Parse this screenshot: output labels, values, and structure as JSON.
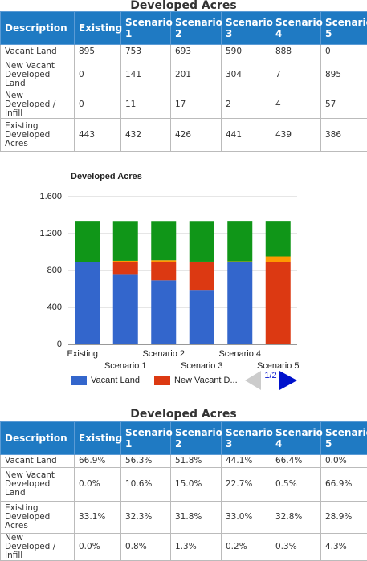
{
  "table1": {
    "title": "Developed Acres",
    "columns": [
      "Description",
      "Existing",
      "Scenario 1",
      "Scenario 2",
      "Scenario 3",
      "Scenario 4",
      "Scenario 5"
    ],
    "rows": [
      [
        "Vacant Land",
        895,
        753,
        693,
        590,
        888,
        0
      ],
      [
        "New Vacant Developed Land",
        0,
        141,
        201,
        304,
        7,
        895
      ],
      [
        "New Developed / Infill",
        0,
        11,
        17,
        2,
        4,
        57
      ],
      [
        "Existing Developed Acres",
        443,
        432,
        426,
        441,
        439,
        386
      ]
    ]
  },
  "chart_data": {
    "type": "stacked_bar",
    "title": "Developed Acres",
    "categories": [
      "Existing",
      "Scenario 1",
      "Scenario 2",
      "Scenario 3",
      "Scenario 4",
      "Scenario 5"
    ],
    "series": [
      {
        "name": "Vacant Land",
        "color": "#3366cc",
        "values": [
          895,
          753,
          693,
          590,
          888,
          0
        ]
      },
      {
        "name": "New Vacant Developed Land",
        "color": "#dc3912",
        "values": [
          0,
          141,
          201,
          304,
          7,
          895
        ]
      },
      {
        "name": "New Developed / Infill",
        "color": "#ff9900",
        "values": [
          0,
          11,
          17,
          2,
          4,
          57
        ]
      },
      {
        "name": "Existing Developed Acres",
        "color": "#109618",
        "values": [
          443,
          432,
          426,
          441,
          439,
          386
        ]
      }
    ],
    "ylim": [
      0,
      1600
    ],
    "yticks": [
      0,
      400,
      800,
      {
        "value": 1200,
        "label": "1.200"
      },
      {
        "value": 1600,
        "label": "1.600"
      }
    ],
    "grid": true,
    "legend": {
      "entries": [
        "Vacant Land",
        "New Vacant D..."
      ],
      "page": "1/2"
    }
  },
  "table2": {
    "title": "Developed Acres",
    "columns": [
      "Description",
      "Existing",
      "Scenario 1",
      "Scenario 2",
      "Scenario 3",
      "Scenario 4",
      "Scenario 5"
    ],
    "rows": [
      [
        "Vacant Land",
        "66.9%",
        "56.3%",
        "51.8%",
        "44.1%",
        "66.4%",
        "0.0%"
      ],
      [
        "New Vacant Developed Land",
        "0.0%",
        "10.6%",
        "15.0%",
        "22.7%",
        "0.5%",
        "66.9%"
      ],
      [
        "Existing Developed Acres",
        "33.1%",
        "32.3%",
        "31.8%",
        "33.0%",
        "32.8%",
        "28.9%"
      ],
      [
        "New Developed / Infill",
        "0.0%",
        "0.8%",
        "1.3%",
        "0.2%",
        "0.3%",
        "4.3%"
      ]
    ]
  }
}
